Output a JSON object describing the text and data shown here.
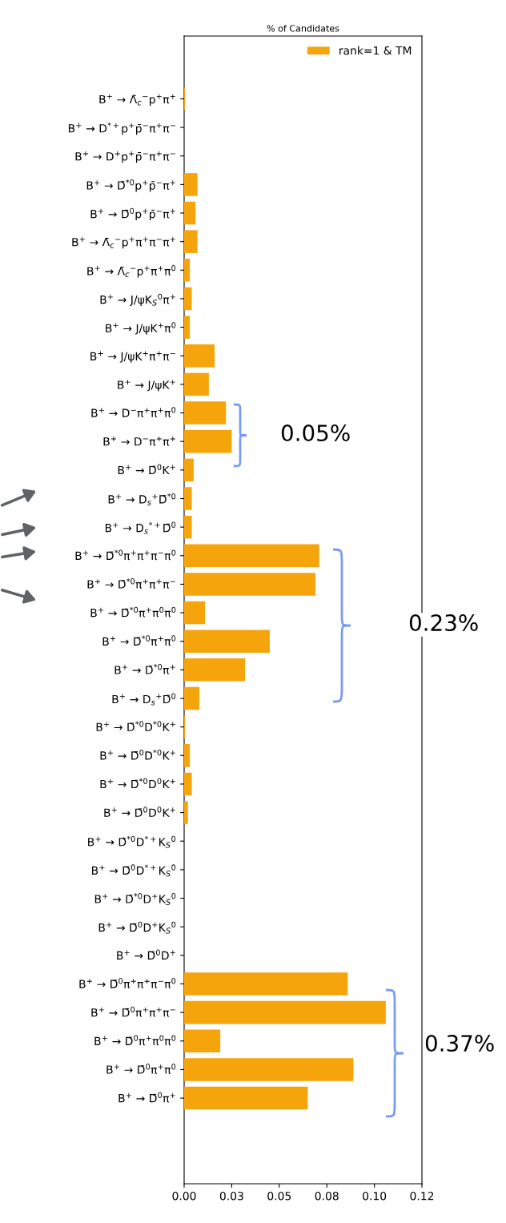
{
  "chart_data": {
    "type": "bar",
    "orientation": "horizontal",
    "title": "% of Candidates",
    "categories": [
      "B$^{+}$ → Λ̄$_{c}$$^{−}$p$^{+}$π$^{+}$",
      "B$^{+}$ → D$^{*+}$p$^{+}$p̄$^{−}$π$^{+}$π$^{−}$",
      "B$^{+}$ → D$^{+}$p$^{+}$p̄$^{−}$π$^{+}$π$^{−}$",
      "B$^{+}$ → D̄$^{*0}$p$^{+}$p̄$^{−}$π$^{+}$",
      "B$^{+}$ → D̄$^{0}$p$^{+}$p̄$^{−}$π$^{+}$",
      "B$^{+}$ → Λ̄$_{c}$$^{−}$p$^{+}$π$^{+}$π$^{−}$π$^{+}$",
      "B$^{+}$ → Λ̄$_{c}$$^{−}$p$^{+}$π$^{+}$π$^{0}$",
      "B$^{+}$ → J/ψK$_{S}$$^{0}$π$^{+}$",
      "B$^{+}$ → J/ψK$^{+}$π$^{0}$",
      "B$^{+}$ → J/ψK$^{+}$π$^{+}$π$^{−}$",
      "B$^{+}$ → J/ψK$^{+}$",
      "B$^{+}$ → D$^{−}$π$^{+}$π$^{+}$π$^{0}$",
      "B$^{+}$ → D$^{−}$π$^{+}$π$^{+}$",
      "B$^{+}$ → D̄$^{0}$K$^{+}$",
      "B$^{+}$ → D$_{s}$$^{+}$D̄$^{*0}$",
      "B$^{+}$ → D$_{s}$$^{*+}$D̄$^{0}$",
      "B$^{+}$ → D̄$^{*0}$π$^{+}$π$^{+}$π$^{−}$π$^{0}$",
      "B$^{+}$ → D̄$^{*0}$π$^{+}$π$^{+}$π$^{−}$",
      "B$^{+}$ → D̄$^{*0}$π$^{+}$π$^{0}$π$^{0}$",
      "B$^{+}$ → D̄$^{*0}$π$^{+}$π$^{0}$",
      "B$^{+}$ → D̄$^{*0}$π$^{+}$",
      "B$^{+}$ → D$_{s}$$^{+}$D̄$^{0}$",
      "B$^{+}$ → D̄$^{*0}$D$^{*0}$K$^{+}$",
      "B$^{+}$ → D̄$^{0}$D$^{*0}$K$^{+}$",
      "B$^{+}$ → D̄$^{*0}$D$^{0}$K$^{+}$",
      "B$^{+}$ → D̄$^{0}$D$^{0}$K$^{+}$",
      "B$^{+}$ → D̄$^{*0}$D$^{*+}$K$_{S}$$^{0}$",
      "B$^{+}$ → D̄$^{0}$D$^{*+}$K$_{S}$$^{0}$",
      "B$^{+}$ → D̄$^{*0}$D$^{+}$K$_{S}$$^{0}$",
      "B$^{+}$ → D̄$^{0}$D$^{+}$K$_{S}$$^{0}$",
      "B$^{+}$ → D̄$^{0}$D$^{+}$",
      "B$^{+}$ → D̄$^{0}$π$^{+}$π$^{+}$π$^{−}$π$^{0}$",
      "B$^{+}$ → D̄$^{0}$π$^{+}$π$^{+}$π$^{−}$",
      "B$^{+}$ → D̄$^{0}$π$^{+}$π$^{0}$π$^{0}$",
      "B$^{+}$ → D̄$^{0}$π$^{+}$π$^{0}$",
      "B$^{+}$ → D̄$^{0}$π$^{+}$"
    ],
    "series": [
      {
        "name": "rank=1 & TM",
        "color": "#f6a40c",
        "values": [
          0.0005,
          0,
          0,
          0.007,
          0.006,
          0.007,
          0.003,
          0.004,
          0.003,
          0.016,
          0.013,
          0.022,
          0.025,
          0.005,
          0.004,
          0.004,
          0.071,
          0.069,
          0.011,
          0.045,
          0.032,
          0.008,
          0.0005,
          0.003,
          0.004,
          0.002,
          0,
          0,
          0,
          0,
          0,
          0.086,
          0.106,
          0.019,
          0.089,
          0.065
        ]
      }
    ],
    "xlim": [
      0,
      0.125
    ],
    "xticks": [
      {
        "value": 0,
        "label": "0.00"
      },
      {
        "value": 0.025,
        "label": "0.03"
      },
      {
        "value": 0.05,
        "label": "0.05"
      },
      {
        "value": 0.075,
        "label": "0.08"
      },
      {
        "value": 0.1,
        "label": "0.10"
      },
      {
        "value": 0.125,
        "label": "0.12"
      }
    ],
    "annotations": [
      "0.05%",
      "0.23%",
      "0.37%"
    ],
    "legend": "top right",
    "grid": false
  }
}
